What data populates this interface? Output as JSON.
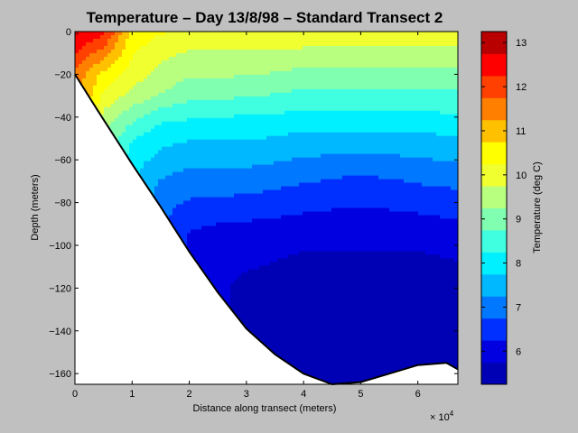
{
  "chart_data": {
    "type": "heatmap",
    "subtype": "filled-contour",
    "title": "Temperature – Day 13/8/98 – Standard Transect 2",
    "xlabel": "Distance along transect (meters)",
    "ylabel": "Depth (meters)",
    "x_exponent_label": "× 10",
    "x_exponent_power": "4",
    "xlim": [
      0,
      67000
    ],
    "ylim": [
      -165,
      0
    ],
    "x_ticks": [
      0,
      10000,
      20000,
      30000,
      40000,
      50000,
      60000
    ],
    "x_tick_labels": [
      "0",
      "1",
      "2",
      "3",
      "4",
      "5",
      "6"
    ],
    "y_ticks": [
      0,
      -20,
      -40,
      -60,
      -80,
      -100,
      -120,
      -140,
      -160
    ],
    "y_tick_labels": [
      "0",
      "−20",
      "−40",
      "−60",
      "−80",
      "−100",
      "−120",
      "−140",
      "−160"
    ],
    "colorbar": {
      "label": "Temperature (deg C)",
      "range": [
        5.25,
        13.25
      ],
      "ticks": [
        6,
        7,
        8,
        9,
        10,
        11,
        12,
        13
      ],
      "tick_labels": [
        "6",
        "7",
        "8",
        "9",
        "10",
        "11",
        "12",
        "13"
      ],
      "levels": [
        {
          "min": 5.25,
          "max": 5.75,
          "color": "#0000b4"
        },
        {
          "min": 5.75,
          "max": 6.25,
          "color": "#0000e0"
        },
        {
          "min": 6.25,
          "max": 6.75,
          "color": "#0030ff"
        },
        {
          "min": 6.75,
          "max": 7.25,
          "color": "#0078ff"
        },
        {
          "min": 7.25,
          "max": 7.75,
          "color": "#00b8ff"
        },
        {
          "min": 7.75,
          "max": 8.25,
          "color": "#00f0ff"
        },
        {
          "min": 8.25,
          "max": 8.75,
          "color": "#40ffe0"
        },
        {
          "min": 8.75,
          "max": 9.25,
          "color": "#80ffb0"
        },
        {
          "min": 9.25,
          "max": 9.75,
          "color": "#b8ff80"
        },
        {
          "min": 9.75,
          "max": 10.25,
          "color": "#f0ff30"
        },
        {
          "min": 10.25,
          "max": 10.75,
          "color": "#ffff00"
        },
        {
          "min": 10.75,
          "max": 11.25,
          "color": "#ffc000"
        },
        {
          "min": 11.25,
          "max": 11.75,
          "color": "#ff8000"
        },
        {
          "min": 11.75,
          "max": 12.25,
          "color": "#ff4000"
        },
        {
          "min": 12.25,
          "max": 12.75,
          "color": "#ff0000"
        },
        {
          "min": 12.75,
          "max": 13.25,
          "color": "#b80000"
        }
      ]
    },
    "seabed": [
      {
        "x": 0,
        "depth": -20
      },
      {
        "x": 4000,
        "depth": -37
      },
      {
        "x": 10000,
        "depth": -62
      },
      {
        "x": 15000,
        "depth": -82
      },
      {
        "x": 20000,
        "depth": -103
      },
      {
        "x": 25000,
        "depth": -122
      },
      {
        "x": 30000,
        "depth": -139
      },
      {
        "x": 35000,
        "depth": -151
      },
      {
        "x": 40000,
        "depth": -160
      },
      {
        "x": 45000,
        "depth": -165
      },
      {
        "x": 50000,
        "depth": -164
      },
      {
        "x": 55000,
        "depth": -160
      },
      {
        "x": 60000,
        "depth": -156
      },
      {
        "x": 65000,
        "depth": -155
      },
      {
        "x": 67000,
        "depth": -158
      }
    ],
    "temperature_profiles": [
      {
        "x": 0,
        "depth": [
          0,
          -20
        ],
        "temp": [
          12.9,
          11.6
        ]
      },
      {
        "x": 5000,
        "depth": [
          0,
          -10,
          -20,
          -30,
          -40,
          -46
        ],
        "temp": [
          12.4,
          11.5,
          10.6,
          10.1,
          9.6,
          9.3
        ]
      },
      {
        "x": 10000,
        "depth": [
          0,
          -10,
          -20,
          -30,
          -40,
          -50,
          -62
        ],
        "temp": [
          10.6,
          10.3,
          10.0,
          9.6,
          8.9,
          8.3,
          7.9
        ]
      },
      {
        "x": 15000,
        "depth": [
          0,
          -10,
          -20,
          -30,
          -40,
          -50,
          -60,
          -70,
          -82
        ],
        "temp": [
          10.3,
          9.9,
          9.6,
          9.2,
          8.4,
          7.9,
          7.6,
          7.2,
          6.9
        ]
      },
      {
        "x": 20000,
        "depth": [
          0,
          -10,
          -20,
          -30,
          -40,
          -50,
          -60,
          -70,
          -80,
          -90,
          -103
        ],
        "temp": [
          10.2,
          9.7,
          9.3,
          8.9,
          8.3,
          7.8,
          7.4,
          7.0,
          6.7,
          6.3,
          6.1
        ]
      },
      {
        "x": 30000,
        "depth": [
          0,
          -10,
          -20,
          -30,
          -40,
          -50,
          -60,
          -70,
          -80,
          -90,
          -100,
          -110,
          -120,
          -139
        ],
        "temp": [
          10.3,
          9.7,
          9.3,
          8.8,
          8.2,
          7.8,
          7.4,
          7.0,
          6.6,
          6.2,
          6.0,
          5.8,
          5.6,
          5.6
        ]
      },
      {
        "x": 40000,
        "depth": [
          0,
          -10,
          -20,
          -30,
          -40,
          -50,
          -60,
          -70,
          -80,
          -90,
          -100,
          -110,
          -120,
          -160
        ],
        "temp": [
          10.2,
          9.6,
          9.1,
          8.6,
          8.1,
          7.6,
          7.2,
          6.8,
          6.4,
          6.1,
          5.8,
          5.6,
          5.5,
          5.5
        ]
      },
      {
        "x": 50000,
        "depth": [
          0,
          -10,
          -20,
          -30,
          -40,
          -50,
          -60,
          -70,
          -80,
          -90,
          -100,
          -110,
          -120,
          -164
        ],
        "temp": [
          10.1,
          9.6,
          9.1,
          8.6,
          8.1,
          7.6,
          7.1,
          6.6,
          6.3,
          6.0,
          5.8,
          5.6,
          5.5,
          5.5
        ]
      },
      {
        "x": 60000,
        "depth": [
          0,
          -10,
          -20,
          -30,
          -40,
          -50,
          -60,
          -70,
          -80,
          -90,
          -100,
          -110,
          -120,
          -156
        ],
        "temp": [
          10.1,
          9.6,
          9.1,
          8.6,
          8.1,
          7.6,
          7.2,
          6.8,
          6.4,
          6.1,
          5.8,
          5.6,
          5.5,
          5.5
        ]
      },
      {
        "x": 67000,
        "depth": [
          0,
          -10,
          -20,
          -30,
          -40,
          -50,
          -60,
          -70,
          -80,
          -90,
          -100,
          -110,
          -120,
          -158
        ],
        "temp": [
          10.1,
          9.6,
          9.1,
          8.6,
          8.2,
          7.7,
          7.3,
          6.9,
          6.5,
          6.2,
          5.9,
          5.7,
          5.6,
          5.5
        ]
      }
    ]
  }
}
